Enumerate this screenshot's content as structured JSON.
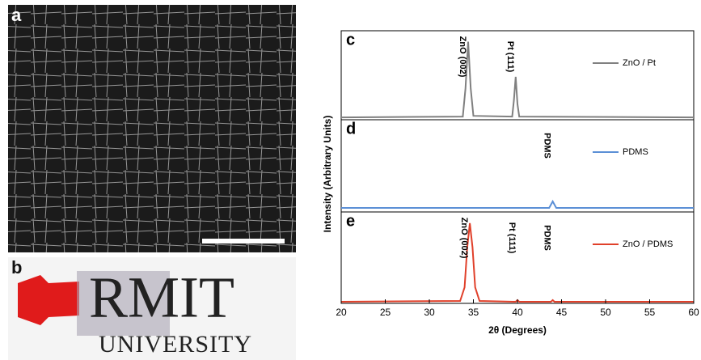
{
  "figure": {
    "panel_a": "a",
    "panel_b": "b",
    "logo": "RMIT",
    "logo_subtitle": "UNIVERSITY",
    "ylabel": "Intensity (Arbitrary Units)"
  },
  "chart_data": [
    {
      "type": "line",
      "panel": "c",
      "xlim": [
        20,
        60
      ],
      "ylim": [
        0,
        1.1
      ],
      "annotations": [
        {
          "text": "ZnO (002)",
          "x": 34.4
        },
        {
          "text": "Pt (111)",
          "x": 39.8
        }
      ],
      "series": [
        {
          "name": "ZnO / Pt",
          "color": "#808080",
          "x": [
            20,
            33.8,
            34.1,
            34.4,
            34.7,
            35.0,
            39.4,
            39.6,
            39.8,
            40.0,
            40.2,
            60
          ],
          "values": [
            0.03,
            0.04,
            0.4,
            1.0,
            0.4,
            0.05,
            0.04,
            0.25,
            0.55,
            0.2,
            0.04,
            0.03
          ]
        }
      ]
    },
    {
      "type": "line",
      "panel": "d",
      "xlim": [
        20,
        60
      ],
      "ylim": [
        0,
        1.1
      ],
      "annotations": [
        {
          "text": "PDMS",
          "x": 44.0
        }
      ],
      "series": [
        {
          "name": "PDMS",
          "color": "#5b8fd6",
          "x": [
            20,
            43.6,
            44.0,
            44.4,
            60
          ],
          "values": [
            0.05,
            0.05,
            0.13,
            0.05,
            0.05
          ]
        }
      ]
    },
    {
      "type": "line",
      "panel": "e",
      "xlim": [
        20,
        60
      ],
      "ylim": [
        0,
        1.1
      ],
      "xticks": [
        20,
        25,
        30,
        35,
        40,
        45,
        50,
        55,
        60
      ],
      "xlabel": "2θ (Degrees)",
      "annotations": [
        {
          "text": "ZnO (002)",
          "x": 34.6
        },
        {
          "text": "Pt (111)",
          "x": 40.0
        },
        {
          "text": "PDMS",
          "x": 44.0
        }
      ],
      "series": [
        {
          "name": "ZnO / PDMS",
          "color": "#e0402a",
          "x": [
            20,
            33.5,
            34.0,
            34.3,
            34.6,
            34.9,
            35.2,
            35.7,
            39.8,
            40.0,
            40.2,
            43.8,
            44.0,
            44.2,
            60
          ],
          "values": [
            0.02,
            0.03,
            0.2,
            0.7,
            1.0,
            0.7,
            0.2,
            0.03,
            0.02,
            0.04,
            0.02,
            0.02,
            0.04,
            0.02,
            0.02
          ]
        }
      ]
    }
  ]
}
